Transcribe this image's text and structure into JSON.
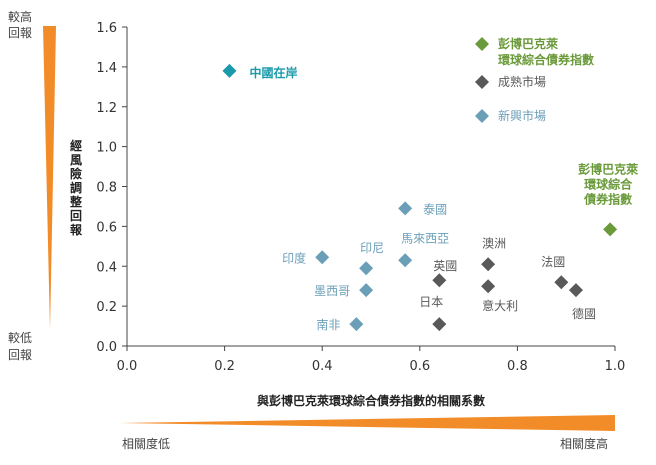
{
  "chart_data": {
    "type": "scatter",
    "xlabel": "與彭博巴克萊環球綜合債券指數的相關系數",
    "ylabel": "經風險調整回報",
    "xlim": [
      0.0,
      1.0
    ],
    "ylim": [
      0.0,
      1.6
    ],
    "x_ticks": [
      "0.0",
      "0.2",
      "0.4",
      "0.6",
      "0.8",
      "1.0"
    ],
    "y_ticks": [
      "0.0",
      "0.2",
      "0.4",
      "0.6",
      "0.8",
      "1.0",
      "1.2",
      "1.4",
      "1.6"
    ],
    "grid": false,
    "legend_position": "top-right",
    "y_scale_labels": {
      "high_line1": "較高",
      "high_line2": "回報",
      "low_line1": "較低",
      "low_line2": "回報"
    },
    "x_scale_labels": {
      "low": "相關度低",
      "high": "相關度高"
    },
    "colors": {
      "bloomberg": "#6a9a3a",
      "developed": "#595959",
      "emerging": "#6b9fb8",
      "china": "#1a9aaa",
      "wedge": "#f28c28",
      "axis": "#444444"
    },
    "series": [
      {
        "name": "彭博巴克萊環球綜合債券指數",
        "color_key": "bloomberg",
        "points": [
          {
            "x": 0.99,
            "y": 0.585,
            "label": "彭博巴克萊\n環球綜合\n債券指數"
          }
        ]
      },
      {
        "name": "成熟市場",
        "color_key": "developed",
        "points": [
          {
            "x": 0.64,
            "y": 0.33,
            "label": "英國"
          },
          {
            "x": 0.64,
            "y": 0.11,
            "label": "日本"
          },
          {
            "x": 0.74,
            "y": 0.41,
            "label": "澳洲"
          },
          {
            "x": 0.74,
            "y": 0.3,
            "label": "意大利"
          },
          {
            "x": 0.89,
            "y": 0.32,
            "label": "法國"
          },
          {
            "x": 0.92,
            "y": 0.28,
            "label": "德國"
          }
        ]
      },
      {
        "name": "新興市場",
        "color_key": "emerging",
        "points": [
          {
            "x": 0.57,
            "y": 0.69,
            "label": "泰國"
          },
          {
            "x": 0.57,
            "y": 0.43,
            "label": "馬來西亞"
          },
          {
            "x": 0.49,
            "y": 0.39,
            "label": "印尼"
          },
          {
            "x": 0.4,
            "y": 0.445,
            "label": "印度"
          },
          {
            "x": 0.49,
            "y": 0.28,
            "label": "墨西哥"
          },
          {
            "x": 0.47,
            "y": 0.11,
            "label": "南非"
          }
        ]
      },
      {
        "name": "中國在岸",
        "color_key": "china",
        "points": [
          {
            "x": 0.21,
            "y": 1.38,
            "label": "中國在岸"
          }
        ]
      }
    ]
  }
}
